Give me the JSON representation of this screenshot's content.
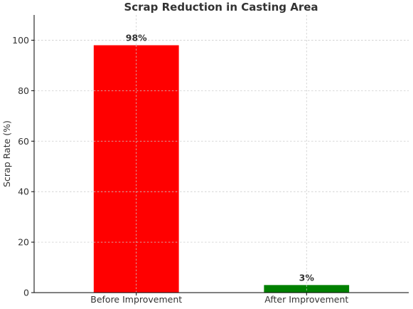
{
  "chart_data": {
    "type": "bar",
    "title": "Scrap Reduction in Casting Area",
    "xlabel": "",
    "ylabel": "Scrap Rate (%)",
    "categories": [
      "Before Improvement",
      "After Improvement"
    ],
    "values": [
      98,
      3
    ],
    "data_labels": [
      "98%",
      "3%"
    ],
    "colors": [
      "#ff0000",
      "#008000"
    ],
    "ylim": [
      0,
      110
    ],
    "yticks": [
      0,
      20,
      40,
      60,
      80,
      100
    ],
    "grid": true
  }
}
